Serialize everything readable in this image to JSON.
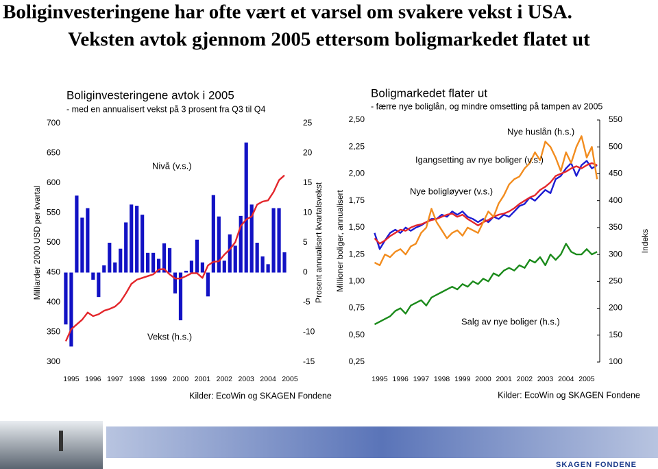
{
  "slide_title": [
    "Boliginvesteringene har ofte vært et varsel om svakere vekst i USA.",
    "Veksten avtok gjennom 2005 ettersom boligmarkedet flatet ut"
  ],
  "logo": "SKAGEN FONDENE",
  "chart_data": [
    {
      "type": "bar_line",
      "title": "Boliginvesteringene avtok i 2005",
      "subtitle": "- med en annualisert vekst på 3 prosent fra Q3 til Q4",
      "ylabel": "Milliarder 2000 USD per kvartal",
      "y2label": "Prosent annualisert kvartalsvekst",
      "source": "Kilder: EcoWin og SKAGEN Fondene",
      "x": [
        1994.75,
        1995,
        1995.25,
        1995.5,
        1995.75,
        1996,
        1996.25,
        1996.5,
        1996.75,
        1997,
        1997.25,
        1997.5,
        1997.75,
        1998,
        1998.25,
        1998.5,
        1998.75,
        1999,
        1999.25,
        1999.5,
        1999.75,
        2000,
        2000.25,
        2000.5,
        2000.75,
        2001,
        2001.25,
        2001.5,
        2001.75,
        2002,
        2002.25,
        2002.5,
        2002.75,
        2003,
        2003.25,
        2003.5,
        2003.75,
        2004,
        2004.25,
        2004.5,
        2004.75
      ],
      "xlim": [
        1994.72,
        2005.25
      ],
      "xticks": [
        1995,
        1996,
        1997,
        1998,
        1999,
        2000,
        2001,
        2002,
        2003,
        2004,
        2005
      ],
      "ylim": [
        300,
        700
      ],
      "yticks": [
        300,
        350,
        400,
        450,
        500,
        550,
        600,
        650,
        700
      ],
      "y2lim": [
        -15,
        25
      ],
      "y2ticks": [
        -15,
        -10,
        -5,
        0,
        5,
        10,
        15,
        20,
        25
      ],
      "series": [
        {
          "name": "Nivå (v.s.)",
          "type": "line",
          "color": "#e3262b",
          "values": [
            335,
            355,
            363,
            371,
            383,
            377,
            380,
            386,
            389,
            393,
            401,
            415,
            431,
            438,
            441,
            444,
            447,
            455,
            456,
            447,
            440,
            440,
            444,
            449,
            449,
            441,
            462,
            468,
            469,
            480,
            489,
            501,
            528,
            539,
            544,
            564,
            569,
            571,
            585,
            605,
            613
          ]
        },
        {
          "name": "Vekst (h.s.)",
          "type": "bar",
          "axis": "y2",
          "color": "#1212c4",
          "values": [
            -8.7,
            -12.4,
            12.9,
            9.2,
            10.8,
            -1.2,
            -4.1,
            1.2,
            5,
            1.7,
            4,
            8.4,
            11.4,
            11.2,
            9.7,
            3.3,
            3.3,
            2.3,
            4.9,
            4.1,
            -3.5,
            -8,
            0.3,
            2,
            5.5,
            1.7,
            -4,
            13,
            9.4,
            2,
            6.4,
            4.5,
            9.5,
            21.8,
            11.4,
            5,
            2.7,
            1.4,
            10.8,
            10.8,
            3.4
          ]
        }
      ]
    },
    {
      "type": "line",
      "title": "Boligmarkedet flater ut",
      "subtitle": "- færre nye boliglån, og mindre omsetting på tampen av 2005",
      "ylabel": "Millioner boliger, annualisert",
      "y2label": "Indeks",
      "source": "Kilder: EcoWin og SKAGEN Fondene",
      "x": [
        1994.75,
        1995,
        1995.25,
        1995.5,
        1995.75,
        1996,
        1996.25,
        1996.5,
        1996.75,
        1997,
        1997.25,
        1997.5,
        1997.75,
        1998,
        1998.25,
        1998.5,
        1998.75,
        1999,
        1999.25,
        1999.5,
        1999.75,
        2000,
        2000.25,
        2000.5,
        2000.75,
        2001,
        2001.25,
        2001.5,
        2001.75,
        2002,
        2002.25,
        2002.5,
        2002.75,
        2003,
        2003.25,
        2003.5,
        2003.75,
        2004,
        2004.25,
        2004.5,
        2004.75,
        2005,
        2005.25,
        2005.5
      ],
      "xlim": [
        1994.47,
        2005.63
      ],
      "xticks": [
        1995,
        1996,
        1997,
        1998,
        1999,
        2000,
        2001,
        2002,
        2003,
        2004,
        2005
      ],
      "ylim": [
        0.25,
        2.5
      ],
      "yticks": [
        {
          "value": 0.25,
          "label": "0,25"
        },
        {
          "value": 0.5,
          "label": "0,50"
        },
        {
          "value": 0.75,
          "label": "0,75"
        },
        {
          "value": 1,
          "label": "1,00"
        },
        {
          "value": 1.25,
          "label": "1,25"
        },
        {
          "value": 1.5,
          "label": "1,50"
        },
        {
          "value": 1.75,
          "label": "1,75"
        },
        {
          "value": 2,
          "label": "2,00"
        },
        {
          "value": 2.25,
          "label": "2,25"
        },
        {
          "value": 2.5,
          "label": "2,50"
        }
      ],
      "y2lim": [
        100,
        550
      ],
      "y2ticks": [
        100,
        150,
        200,
        250,
        300,
        350,
        400,
        450,
        500,
        550
      ],
      "series": [
        {
          "name": "Igangsetting av nye boliger (v.s.)",
          "color": "#1c1cd2",
          "values": [
            1.45,
            1.3,
            1.38,
            1.45,
            1.48,
            1.45,
            1.5,
            1.47,
            1.5,
            1.52,
            1.55,
            1.58,
            1.58,
            1.62,
            1.6,
            1.65,
            1.62,
            1.65,
            1.6,
            1.58,
            1.55,
            1.58,
            1.55,
            1.6,
            1.58,
            1.62,
            1.6,
            1.65,
            1.7,
            1.72,
            1.78,
            1.75,
            1.8,
            1.85,
            1.82,
            1.95,
            1.98,
            2.05,
            2.1,
            1.98,
            2.08,
            2.12,
            2.05,
            2.08
          ]
        },
        {
          "name": "Nye boligløyver (v.s.)",
          "color": "#e3262b",
          "values": [
            1.4,
            1.35,
            1.38,
            1.42,
            1.45,
            1.48,
            1.47,
            1.5,
            1.52,
            1.53,
            1.55,
            1.57,
            1.58,
            1.6,
            1.62,
            1.63,
            1.6,
            1.62,
            1.58,
            1.55,
            1.52,
            1.55,
            1.57,
            1.6,
            1.62,
            1.63,
            1.65,
            1.68,
            1.72,
            1.75,
            1.78,
            1.8,
            1.85,
            1.88,
            1.92,
            1.98,
            2,
            2.02,
            2.05,
            2.07,
            2.05,
            2.08,
            2.1,
            2.08
          ]
        },
        {
          "name": "Nye huslån (h.s.)",
          "axis": "y2",
          "color": "#f28c1e",
          "values": [
            285,
            280,
            300,
            295,
            305,
            310,
            300,
            315,
            320,
            340,
            350,
            385,
            360,
            345,
            330,
            340,
            345,
            335,
            350,
            345,
            340,
            360,
            380,
            370,
            395,
            410,
            430,
            440,
            445,
            460,
            470,
            490,
            475,
            510,
            500,
            480,
            455,
            490,
            470,
            500,
            520,
            480,
            500,
            440
          ]
        },
        {
          "name": "Salg av nye boliger (h.s.)",
          "axis": "y2",
          "color": "#1a8a1a",
          "values": [
            170,
            175,
            180,
            185,
            195,
            200,
            190,
            205,
            210,
            215,
            205,
            220,
            225,
            230,
            235,
            240,
            235,
            245,
            240,
            250,
            245,
            255,
            250,
            265,
            260,
            270,
            275,
            270,
            280,
            275,
            290,
            285,
            295,
            280,
            300,
            290,
            300,
            320,
            305,
            300,
            300,
            310,
            300,
            305
          ]
        }
      ]
    }
  ]
}
